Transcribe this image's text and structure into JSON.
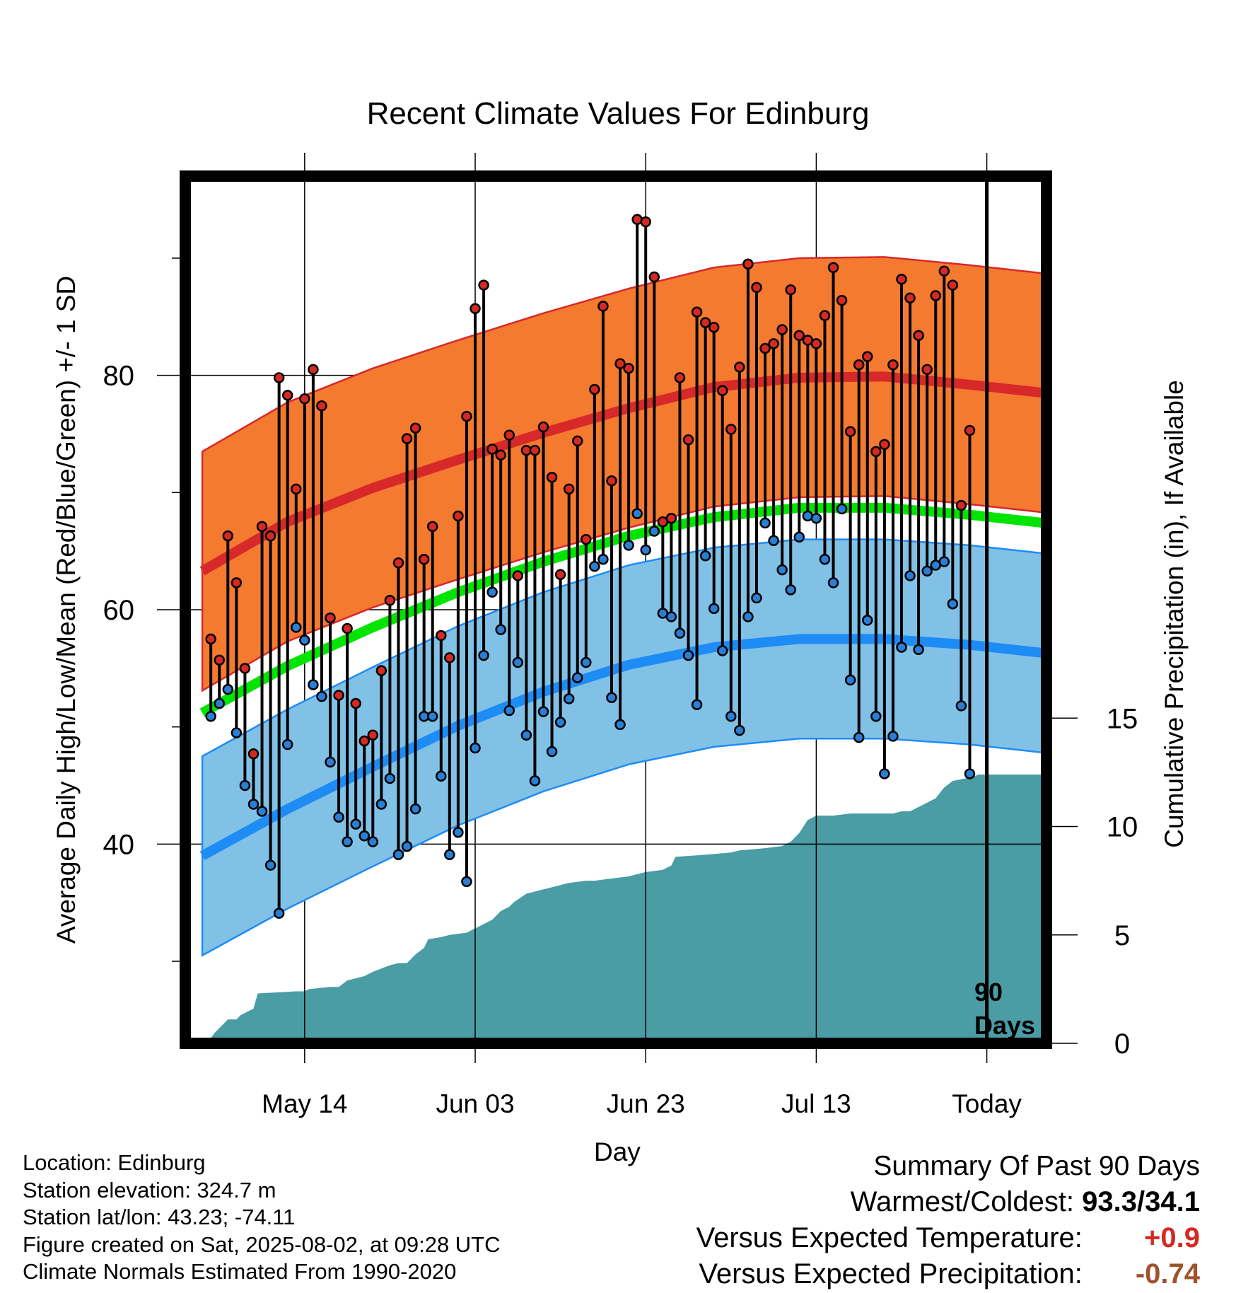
{
  "title": "Recent Climate Values For Edinburg",
  "ylabel_left": "Average Daily High/Low/Mean (Red/Blue/Green) +/- 1 SD",
  "ylabel_right": "Cumulative Precipitation (in), If Available",
  "xlabel": "Day",
  "period_label": [
    "90",
    "Days"
  ],
  "footer": {
    "location": "Location: Edinburg",
    "elevation": "Station elevation: 324.7 m",
    "latlon": "Station lat/lon: 43.23; -74.11",
    "created": "Figure created on Sat, 2025-08-02, at 09:28 UTC",
    "normals": "Climate Normals Estimated From 1990-2020"
  },
  "summary": {
    "title": "Summary Of Past 90 Days",
    "warm_cold_label": "Warmest/Coldest:",
    "warm_cold_value": "93.3/34.1",
    "temp_label": "Versus Expected Temperature:",
    "temp_value": "+0.9",
    "precip_label": "Versus Expected Precipitation:",
    "precip_value": "-0.74"
  },
  "colors": {
    "high_band": "#f47a30",
    "high_line": "#d7282a",
    "low_band": "#82c1e6",
    "low_line": "#1e8cf5",
    "mean_line": "#00e400",
    "precip": "#4a9ca5",
    "high_point": "#d42a22",
    "low_point": "#2a7fd4",
    "temp_delta": "#d42a22",
    "precip_delta": "#a0522d"
  },
  "chart_data": {
    "type": "line",
    "x_day_range": [
      -92,
      9
    ],
    "x_ticks": [
      {
        "day": -78,
        "label": "May 14"
      },
      {
        "day": -58,
        "label": "Jun 03"
      },
      {
        "day": -38,
        "label": "Jun 23"
      },
      {
        "day": -18,
        "label": "Jul 13"
      },
      {
        "day": 2,
        "label": "Today"
      }
    ],
    "today_day": 2,
    "y_left_range": [
      23,
      97
    ],
    "y_left_ticks": [
      40,
      60,
      80
    ],
    "y_left_minor": [
      30,
      50,
      70,
      90
    ],
    "y_right_range": [
      0,
      40
    ],
    "y_right_ticks": [
      0,
      5,
      10,
      15
    ],
    "normals": {
      "days": [
        -90,
        -80,
        -70,
        -60,
        -50,
        -40,
        -30,
        -20,
        -10,
        0,
        10
      ],
      "high_mean": [
        63.3,
        67.5,
        70.4,
        72.8,
        75.1,
        77.2,
        79.0,
        79.8,
        79.9,
        79.2,
        78.4
      ],
      "high_sd": 10.2,
      "low_mean": [
        39.0,
        43.0,
        46.6,
        50.1,
        53.0,
        55.3,
        56.8,
        57.5,
        57.5,
        57.0,
        56.2
      ],
      "low_sd": 8.5,
      "mean_mean": [
        51.2,
        55.2,
        58.5,
        61.5,
        64.1,
        66.3,
        67.9,
        68.7,
        68.7,
        68.1,
        67.3
      ]
    },
    "daily": {
      "start_day": -89,
      "highs": [
        57.5,
        55.7,
        66.3,
        62.3,
        55.0,
        47.7,
        67.1,
        66.3,
        79.8,
        78.3,
        70.3,
        78.0,
        80.5,
        77.4,
        59.3,
        52.7,
        58.4,
        52.0,
        48.8,
        49.3,
        54.8,
        60.8,
        64.0,
        74.6,
        75.5,
        64.3,
        67.1,
        57.8,
        55.9,
        68.0,
        76.5,
        85.7,
        87.7,
        73.7,
        73.2,
        74.9,
        62.9,
        73.6,
        73.6,
        75.6,
        71.3,
        63.0,
        70.3,
        74.4,
        66.0,
        78.8,
        85.9,
        71.0,
        81.0,
        80.6,
        93.3,
        93.1,
        88.4,
        67.5,
        67.8,
        79.8,
        74.5,
        85.4,
        84.5,
        84.1,
        78.7,
        75.4,
        80.7,
        89.5,
        87.5,
        82.3,
        82.7,
        83.9,
        87.3,
        83.4,
        83.0,
        82.7,
        85.1,
        89.2,
        86.4,
        75.2,
        80.9,
        81.6,
        73.5,
        74.1,
        80.9,
        88.2,
        86.6,
        83.4,
        80.5,
        86.8,
        88.9,
        87.7,
        68.9,
        75.3
      ],
      "lows": [
        50.9,
        52.0,
        53.2,
        49.5,
        45.0,
        43.4,
        42.8,
        38.2,
        34.1,
        48.5,
        58.5,
        57.4,
        53.6,
        52.6,
        47.0,
        42.3,
        40.2,
        41.7,
        40.7,
        40.2,
        43.4,
        45.6,
        39.1,
        39.8,
        43.0,
        50.9,
        50.9,
        45.8,
        39.1,
        41.0,
        36.8,
        48.2,
        56.1,
        61.5,
        58.3,
        51.4,
        55.5,
        49.3,
        45.4,
        51.3,
        47.9,
        50.4,
        52.4,
        54.2,
        55.5,
        63.7,
        64.3,
        52.5,
        50.2,
        65.5,
        68.2,
        65.1,
        66.7,
        59.7,
        59.4,
        58.0,
        56.1,
        51.9,
        64.6,
        60.1,
        56.5,
        50.9,
        49.7,
        59.4,
        61.0,
        67.4,
        65.9,
        63.4,
        61.7,
        66.2,
        68.0,
        67.8,
        64.3,
        62.3,
        68.6,
        54.0,
        49.1,
        59.1,
        50.9,
        46.0,
        49.2,
        56.8,
        62.9,
        56.6,
        63.3,
        63.8,
        64.1,
        60.5,
        51.8,
        46.0
      ]
    },
    "precip": {
      "days": [
        -89.5,
        -88.5,
        -87.0,
        -86.0,
        -85.5,
        -84.0,
        -83.5,
        -79.0,
        -78.0,
        -77.5,
        -75.0,
        -74.0,
        -73.0,
        -71.0,
        -70.0,
        -68.0,
        -67.0,
        -66.0,
        -65.0,
        -64.0,
        -63.5,
        -62.0,
        -61.0,
        -59.0,
        -56.0,
        -55.0,
        -54.0,
        -53.5,
        -52.0,
        -51.0,
        -50.0,
        -49.0,
        -47.0,
        -45.0,
        -44.0,
        -42.0,
        -40.0,
        -39.0,
        -38.0,
        -36.0,
        -35.0,
        -34.5,
        -31.0,
        -28.0,
        -27.0,
        -24.0,
        -22.0,
        -21.0,
        -20.0,
        -19.5,
        -19.0,
        -18.0,
        -16.0,
        -14.0,
        -13.0,
        -11.0,
        -9.0,
        -8.0,
        -7.0,
        -5.5,
        -4.0,
        -3.0,
        -2.0,
        0.5,
        1.0,
        9.0
      ],
      "totals": [
        0.0,
        0.5,
        1.1,
        1.1,
        1.3,
        1.6,
        2.3,
        2.4,
        2.4,
        2.5,
        2.6,
        2.6,
        2.9,
        3.1,
        3.3,
        3.6,
        3.7,
        3.7,
        4.1,
        4.4,
        4.8,
        4.9,
        5.0,
        5.1,
        5.7,
        6.1,
        6.3,
        6.5,
        6.9,
        7.0,
        7.1,
        7.2,
        7.4,
        7.5,
        7.5,
        7.6,
        7.7,
        7.8,
        7.9,
        8.0,
        8.2,
        8.6,
        8.7,
        8.8,
        8.9,
        9.0,
        9.1,
        9.3,
        9.7,
        10.0,
        10.3,
        10.5,
        10.5,
        10.6,
        10.6,
        10.6,
        10.6,
        10.7,
        10.7,
        11.0,
        11.3,
        11.8,
        12.1,
        12.3,
        12.4,
        12.4
      ]
    }
  }
}
